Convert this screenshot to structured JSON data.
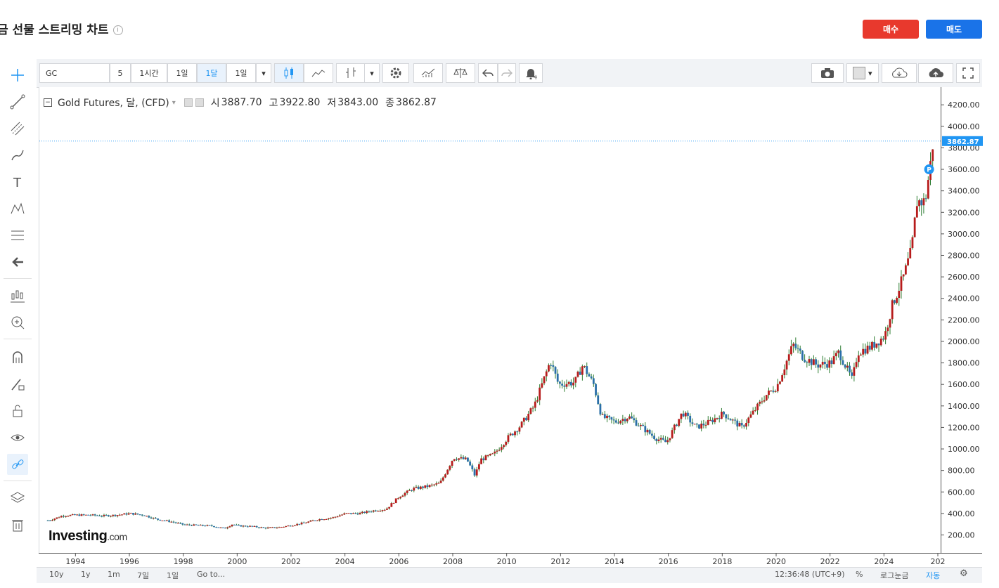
{
  "page": {
    "title": "금 선물 스트리밍 차트",
    "buy_label": "매수",
    "sell_label": "매도"
  },
  "toolbar": {
    "symbol": "GC",
    "intervals": [
      "5",
      "1시간",
      "1일",
      "1달",
      "1일"
    ],
    "active_interval": "1달"
  },
  "legend": {
    "instrument": "Gold Futures, 달, (CFD)",
    "open_label": "시",
    "open": "3887.70",
    "high_label": "고",
    "high": "3922.80",
    "low_label": "저",
    "low": "3843.00",
    "close_label": "종",
    "close": "3862.87"
  },
  "logo": {
    "brand": "Investing",
    "suffix": ".com"
  },
  "bottom_bar": {
    "ranges": [
      "10y",
      "1y",
      "1m",
      "7일",
      "1일"
    ],
    "goto": "Go to...",
    "clock": "12:36:48 (UTC+9)",
    "percent": "%",
    "log_scale": "로그눈금",
    "auto": "자동"
  },
  "colors": {
    "up": "#b71c1c",
    "down": "#2a6fa8",
    "wick": "#2e7d32",
    "price_line": "#2196f3",
    "badge": "#2196f3"
  },
  "chart_data": {
    "type": "candlestick",
    "title": "Gold Futures, 달, (CFD)",
    "x_tick_labels": [
      "1994",
      "1996",
      "1998",
      "2000",
      "2002",
      "2004",
      "2006",
      "2008",
      "2010",
      "2012",
      "2014",
      "2016",
      "2018",
      "2020",
      "2022",
      "2024",
      "202"
    ],
    "y_tick_labels": [
      "200.00",
      "400.00",
      "600.00",
      "800.00",
      "1000.00",
      "1200.00",
      "1400.00",
      "1600.00",
      "1800.00",
      "2000.00",
      "2200.00",
      "2400.00",
      "2600.00",
      "2800.00",
      "3000.00",
      "3200.00",
      "3400.00",
      "3600.00",
      "3800.00",
      "4000.00",
      "4200.00"
    ],
    "ylim": [
      80,
      4200
    ],
    "xlim": [
      1992.7,
      2026.1
    ],
    "last_price": 3862.87,
    "last_price_label": "3862.87",
    "badge": "P",
    "series": [
      {
        "name": "close",
        "points": [
          [
            1993.0,
            335
          ],
          [
            1993.5,
            380
          ],
          [
            1994.0,
            385
          ],
          [
            1994.5,
            385
          ],
          [
            1995.0,
            378
          ],
          [
            1995.5,
            385
          ],
          [
            1996.0,
            400
          ],
          [
            1996.5,
            385
          ],
          [
            1997.0,
            345
          ],
          [
            1997.5,
            325
          ],
          [
            1998.0,
            295
          ],
          [
            1998.5,
            290
          ],
          [
            1999.0,
            285
          ],
          [
            1999.5,
            260
          ],
          [
            1999.8,
            300
          ],
          [
            2000.0,
            285
          ],
          [
            2000.5,
            280
          ],
          [
            2001.0,
            265
          ],
          [
            2001.5,
            270
          ],
          [
            2002.0,
            290
          ],
          [
            2002.5,
            315
          ],
          [
            2003.0,
            345
          ],
          [
            2003.5,
            360
          ],
          [
            2004.0,
            400
          ],
          [
            2004.5,
            400
          ],
          [
            2005.0,
            425
          ],
          [
            2005.5,
            440
          ],
          [
            2006.0,
            560
          ],
          [
            2006.5,
            630
          ],
          [
            2007.0,
            650
          ],
          [
            2007.5,
            680
          ],
          [
            2008.0,
            920
          ],
          [
            2008.5,
            900
          ],
          [
            2008.8,
            750
          ],
          [
            2009.0,
            900
          ],
          [
            2009.5,
            950
          ],
          [
            2010.0,
            1100
          ],
          [
            2010.5,
            1220
          ],
          [
            2011.0,
            1400
          ],
          [
            2011.6,
            1820
          ],
          [
            2011.9,
            1600
          ],
          [
            2012.5,
            1620
          ],
          [
            2012.8,
            1780
          ],
          [
            2013.2,
            1600
          ],
          [
            2013.5,
            1300
          ],
          [
            2014.0,
            1250
          ],
          [
            2014.5,
            1300
          ],
          [
            2015.0,
            1200
          ],
          [
            2015.5,
            1100
          ],
          [
            2015.9,
            1060
          ],
          [
            2016.5,
            1340
          ],
          [
            2017.0,
            1200
          ],
          [
            2017.5,
            1250
          ],
          [
            2018.0,
            1330
          ],
          [
            2018.7,
            1200
          ],
          [
            2019.0,
            1300
          ],
          [
            2019.6,
            1500
          ],
          [
            2020.0,
            1580
          ],
          [
            2020.6,
            1970
          ],
          [
            2021.0,
            1850
          ],
          [
            2021.5,
            1780
          ],
          [
            2022.0,
            1800
          ],
          [
            2022.3,
            1900
          ],
          [
            2022.8,
            1640
          ],
          [
            2023.0,
            1900
          ],
          [
            2023.5,
            1950
          ],
          [
            2024.0,
            2050
          ],
          [
            2024.3,
            2350
          ],
          [
            2024.7,
            2600
          ],
          [
            2025.0,
            2850
          ],
          [
            2025.2,
            3300
          ],
          [
            2025.5,
            3300
          ],
          [
            2025.7,
            3650
          ],
          [
            2025.8,
            3862.87
          ]
        ]
      }
    ]
  }
}
